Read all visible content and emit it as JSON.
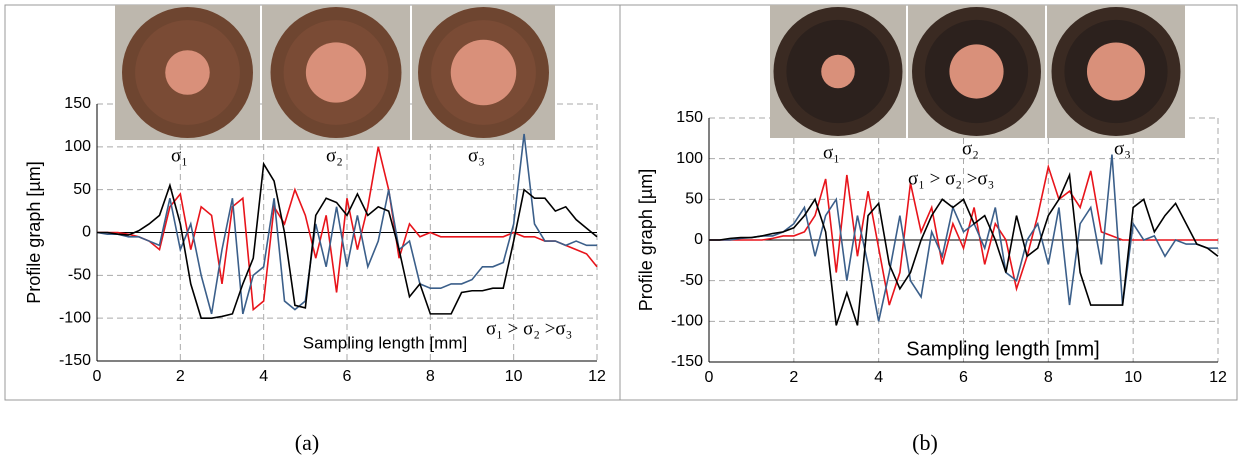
{
  "chart_data": [
    {
      "type": "line",
      "caption": "(a)",
      "xlabel": "Sampling length [mm]",
      "ylabel": "Profile graph [µm]",
      "annotations": [
        "σ₁",
        "σ₂",
        "σ₃",
        "σ₁ > σ₂ >σ₃"
      ],
      "xlim": [
        0,
        12
      ],
      "ylim": [
        -150,
        150
      ],
      "xticks": [
        0,
        2,
        4,
        6,
        8,
        10,
        12
      ],
      "yticks": [
        -150,
        -100,
        -50,
        0,
        50,
        100,
        150
      ],
      "grid": true,
      "x": [
        0,
        0.25,
        0.5,
        0.75,
        1,
        1.25,
        1.5,
        1.75,
        2,
        2.25,
        2.5,
        2.75,
        3,
        3.25,
        3.5,
        3.75,
        4,
        4.25,
        4.5,
        4.75,
        5,
        5.25,
        5.5,
        5.75,
        6,
        6.25,
        6.5,
        6.75,
        7,
        7.25,
        7.5,
        7.75,
        8,
        8.25,
        8.5,
        8.75,
        9,
        9.25,
        9.5,
        9.75,
        10,
        10.25,
        10.5,
        10.75,
        11,
        11.25,
        11.5,
        11.75,
        12
      ],
      "series": [
        {
          "color": "#e8141b",
          "values": [
            0,
            0,
            0,
            -2,
            -5,
            -10,
            -20,
            30,
            45,
            -20,
            30,
            20,
            -60,
            30,
            40,
            -90,
            -80,
            30,
            10,
            50,
            20,
            -30,
            20,
            -70,
            40,
            -20,
            30,
            100,
            50,
            -30,
            10,
            -5,
            0,
            -5,
            -5,
            -5,
            -5,
            -5,
            -5,
            -5,
            0,
            -5,
            -5,
            -10,
            -10,
            -15,
            -20,
            -25,
            -40
          ]
        },
        {
          "color": "#3b5f8a",
          "values": [
            0,
            -2,
            -2,
            -5,
            -5,
            -10,
            -15,
            40,
            -20,
            10,
            -50,
            -95,
            -20,
            40,
            -95,
            -50,
            -40,
            40,
            -80,
            -90,
            -80,
            10,
            -40,
            30,
            -40,
            20,
            -40,
            -10,
            50,
            -20,
            -10,
            -60,
            -65,
            -65,
            -60,
            -60,
            -55,
            -40,
            -40,
            -35,
            10,
            115,
            10,
            -10,
            -10,
            -15,
            -10,
            -15,
            -15
          ]
        },
        {
          "color": "#000000",
          "values": [
            0,
            0,
            -2,
            -3,
            2,
            10,
            20,
            55,
            10,
            -60,
            -100,
            -100,
            -98,
            -95,
            -60,
            -30,
            80,
            60,
            0,
            -85,
            -88,
            20,
            40,
            35,
            20,
            45,
            20,
            30,
            25,
            -20,
            -75,
            -60,
            -95,
            -95,
            -95,
            -70,
            -68,
            -68,
            -65,
            -65,
            -10,
            50,
            40,
            40,
            25,
            30,
            15,
            5,
            -5
          ]
        }
      ]
    },
    {
      "type": "line",
      "caption": "(b)",
      "xlabel": "Sampling length [mm]",
      "ylabel": "Profile graph [µm]",
      "annotations": [
        "σ₁",
        "σ₂",
        "σ₃",
        "σ₁ > σ₂ >σ₃"
      ],
      "xlim": [
        0,
        12
      ],
      "ylim": [
        -150,
        150
      ],
      "xticks": [
        0,
        2,
        4,
        6,
        8,
        10,
        12
      ],
      "yticks": [
        -150,
        -100,
        -50,
        0,
        50,
        100,
        150
      ],
      "grid": true,
      "x": [
        0,
        0.25,
        0.5,
        0.75,
        1,
        1.25,
        1.5,
        1.75,
        2,
        2.25,
        2.5,
        2.75,
        3,
        3.25,
        3.5,
        3.75,
        4,
        4.25,
        4.5,
        4.75,
        5,
        5.25,
        5.5,
        5.75,
        6,
        6.25,
        6.5,
        6.75,
        7,
        7.25,
        7.5,
        7.75,
        8,
        8.25,
        8.5,
        8.75,
        9,
        9.25,
        9.5,
        9.75,
        10,
        10.25,
        10.5,
        10.75,
        11,
        11.25,
        11.5,
        11.75,
        12
      ],
      "series": [
        {
          "color": "#e8141b",
          "values": [
            0,
            0,
            0,
            0,
            0,
            0,
            2,
            5,
            5,
            10,
            30,
            75,
            -40,
            80,
            -20,
            60,
            -10,
            -80,
            -40,
            70,
            10,
            40,
            -30,
            20,
            -10,
            40,
            -30,
            20,
            0,
            -60,
            -20,
            30,
            90,
            50,
            60,
            40,
            85,
            10,
            5,
            0,
            0,
            0,
            0,
            0,
            0,
            0,
            0,
            0,
            0
          ]
        },
        {
          "color": "#3b5f8a",
          "values": [
            0,
            0,
            0,
            2,
            3,
            5,
            5,
            10,
            20,
            40,
            -20,
            30,
            50,
            -50,
            30,
            -30,
            -100,
            -40,
            30,
            -50,
            -70,
            10,
            -20,
            40,
            10,
            20,
            -10,
            40,
            -40,
            -50,
            0,
            20,
            -30,
            40,
            -80,
            20,
            40,
            -30,
            105,
            -80,
            20,
            0,
            5,
            -20,
            0,
            -5,
            -5,
            -10,
            -10
          ]
        },
        {
          "color": "#000000",
          "values": [
            0,
            0,
            2,
            3,
            3,
            5,
            8,
            10,
            15,
            30,
            50,
            10,
            -105,
            -65,
            -105,
            30,
            45,
            -30,
            -60,
            -40,
            0,
            30,
            50,
            40,
            50,
            20,
            30,
            0,
            -40,
            30,
            -20,
            -10,
            30,
            50,
            80,
            -40,
            -80,
            -80,
            -80,
            -80,
            40,
            50,
            10,
            30,
            45,
            20,
            -5,
            -10,
            -20
          ]
        }
      ]
    }
  ]
}
